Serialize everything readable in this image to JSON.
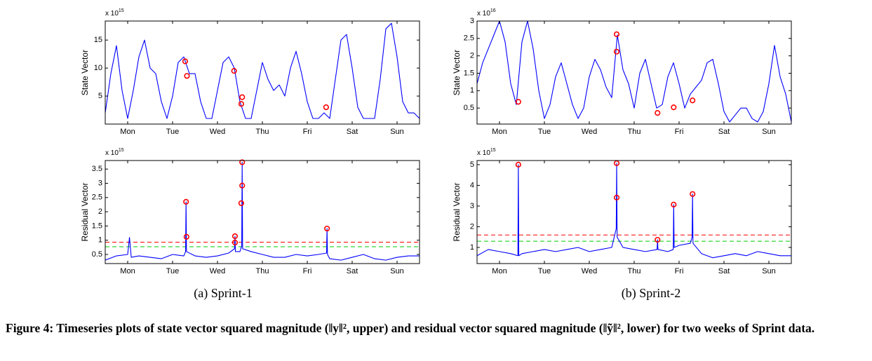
{
  "figure": {
    "subcaptions": [
      "(a) Sprint-1",
      "(b) Sprint-2"
    ],
    "caption": "Figure 4: Timeseries plots of state vector squared magnitude (‖y‖², upper) and residual vector squared magnitude (‖ỹ‖², lower) for two weeks of Sprint data."
  },
  "chart_data": [
    {
      "type": "line",
      "ylabel": "State Vector",
      "multiplier": {
        "base": "x 10",
        "exponent": "15"
      },
      "xlim": [
        0,
        7
      ],
      "xticks": [
        {
          "value": 0.5,
          "label": "Mon"
        },
        {
          "value": 1.5,
          "label": "Tue"
        },
        {
          "value": 2.5,
          "label": "Wed"
        },
        {
          "value": 3.5,
          "label": "Thu"
        },
        {
          "value": 4.5,
          "label": "Fri"
        },
        {
          "value": 5.5,
          "label": "Sat"
        },
        {
          "value": 6.5,
          "label": "Sun"
        }
      ],
      "ylim": [
        0,
        18.4
      ],
      "yticks": [
        5,
        10,
        15
      ],
      "series": [
        {
          "type": "line",
          "color": "#0000ff",
          "x": [
            0,
            0.125,
            0.25,
            0.375,
            0.5,
            0.625,
            0.75,
            0.875,
            1,
            1.125,
            1.25,
            1.375,
            1.5,
            1.625,
            1.75,
            1.875,
            2,
            2.125,
            2.25,
            2.375,
            2.5,
            2.625,
            2.75,
            2.875,
            3,
            3.125,
            3.25,
            3.375,
            3.5,
            3.625,
            3.75,
            3.875,
            4,
            4.125,
            4.25,
            4.375,
            4.5,
            4.625,
            4.75,
            4.875,
            5,
            5.125,
            5.25,
            5.375,
            5.5,
            5.625,
            5.75,
            5.875,
            6,
            6.125,
            6.25,
            6.375,
            6.5,
            6.625,
            6.75,
            6.875,
            7
          ],
          "values": [
            2,
            9,
            14,
            6,
            1,
            6,
            12,
            15,
            10,
            9,
            4,
            1,
            5,
            11,
            12,
            9,
            9,
            4,
            1,
            1,
            6,
            11,
            12,
            10,
            4,
            1,
            1,
            6,
            11,
            8,
            6,
            7,
            5,
            10,
            13,
            9,
            4,
            1,
            1,
            2,
            1,
            8,
            15,
            16,
            10,
            3,
            1,
            1,
            1,
            8,
            17,
            18,
            12,
            4,
            2,
            2,
            1
          ]
        },
        {
          "type": "scatter",
          "color": "#ff0000",
          "x": [
            1.78,
            1.82,
            2.87,
            3.05,
            3.03,
            4.92
          ],
          "values": [
            11.2,
            8.6,
            9.5,
            4.8,
            3.6,
            3.0
          ]
        }
      ]
    },
    {
      "type": "line",
      "ylabel": "State Vector",
      "multiplier": {
        "base": "x 10",
        "exponent": "16"
      },
      "xlim": [
        0,
        7
      ],
      "xticks": [
        {
          "value": 0.5,
          "label": "Mon"
        },
        {
          "value": 1.5,
          "label": "Tue"
        },
        {
          "value": 2.5,
          "label": "Wed"
        },
        {
          "value": 3.5,
          "label": "Thu"
        },
        {
          "value": 4.5,
          "label": "Fri"
        },
        {
          "value": 5.5,
          "label": "Sat"
        },
        {
          "value": 6.5,
          "label": "Sun"
        }
      ],
      "ylim": [
        0.04,
        3
      ],
      "yticks": [
        0.5,
        1,
        1.5,
        2,
        2.5,
        3
      ],
      "series": [
        {
          "type": "line",
          "color": "#0000ff",
          "x": [
            0,
            0.125,
            0.25,
            0.375,
            0.5,
            0.625,
            0.75,
            0.875,
            1,
            1.125,
            1.25,
            1.375,
            1.5,
            1.625,
            1.75,
            1.875,
            2,
            2.125,
            2.25,
            2.375,
            2.5,
            2.625,
            2.75,
            2.875,
            3,
            3.125,
            3.25,
            3.375,
            3.5,
            3.625,
            3.75,
            3.875,
            4,
            4.125,
            4.25,
            4.375,
            4.5,
            4.625,
            4.75,
            4.875,
            5,
            5.125,
            5.25,
            5.375,
            5.5,
            5.625,
            5.75,
            5.875,
            6,
            6.125,
            6.25,
            6.375,
            6.5,
            6.625,
            6.75,
            6.875,
            7
          ],
          "values": [
            1.2,
            1.8,
            2.2,
            2.6,
            3.0,
            2.4,
            1.2,
            0.6,
            2.4,
            3.0,
            2.2,
            1.0,
            0.2,
            0.6,
            1.4,
            1.8,
            1.2,
            0.6,
            0.2,
            0.5,
            1.4,
            1.9,
            1.6,
            1.1,
            0.8,
            2.6,
            1.6,
            1.2,
            0.5,
            1.5,
            1.9,
            1.2,
            0.5,
            0.6,
            1.4,
            1.8,
            1.2,
            0.5,
            0.9,
            1.1,
            1.3,
            1.8,
            1.9,
            1.2,
            0.4,
            0.1,
            0.3,
            0.5,
            0.5,
            0.2,
            0.1,
            0.4,
            1.2,
            2.3,
            1.4,
            0.9,
            0.1
          ]
        },
        {
          "type": "scatter",
          "color": "#ff0000",
          "x": [
            0.92,
            3.11,
            3.11,
            4.02,
            4.38,
            4.8
          ],
          "values": [
            0.68,
            2.62,
            2.12,
            0.36,
            0.52,
            0.72
          ]
        }
      ]
    },
    {
      "type": "line",
      "ylabel": "Residual Vector",
      "multiplier": {
        "base": "x 10",
        "exponent": "15"
      },
      "xlim": [
        0,
        7
      ],
      "xticks": [
        {
          "value": 0.5,
          "label": "Mon"
        },
        {
          "value": 1.5,
          "label": "Tue"
        },
        {
          "value": 2.5,
          "label": "Wed"
        },
        {
          "value": 3.5,
          "label": "Thu"
        },
        {
          "value": 4.5,
          "label": "Fri"
        },
        {
          "value": 5.5,
          "label": "Sat"
        },
        {
          "value": 6.5,
          "label": "Sun"
        }
      ],
      "ylim": [
        0.18,
        3.8
      ],
      "yticks": [
        0.5,
        1,
        1.5,
        2,
        2.5,
        3,
        3.5
      ],
      "hlines": [
        {
          "value": 0.93,
          "color": "#ff0000"
        },
        {
          "value": 0.77,
          "color": "#00cc00"
        }
      ],
      "series": [
        {
          "type": "line",
          "color": "#0000ff",
          "x": [
            0,
            0.25,
            0.5,
            0.54,
            0.58,
            0.75,
            1,
            1.25,
            1.5,
            1.75,
            1.79,
            1.8,
            1.81,
            2,
            2.25,
            2.5,
            2.75,
            2.88,
            2.89,
            2.9,
            3,
            3.04,
            3.05,
            3.06,
            3.25,
            3.5,
            3.75,
            4,
            4.25,
            4.5,
            4.75,
            4.93,
            4.94,
            4.95,
            5,
            5.25,
            5.5,
            5.75,
            6,
            6.25,
            6.5,
            6.75,
            7
          ],
          "values": [
            0.3,
            0.45,
            0.5,
            1.1,
            0.4,
            0.45,
            0.4,
            0.35,
            0.5,
            0.45,
            0.6,
            2.35,
            0.6,
            0.45,
            0.4,
            0.45,
            0.55,
            0.7,
            1.14,
            0.6,
            0.6,
            0.8,
            3.74,
            0.7,
            0.6,
            0.5,
            0.4,
            0.4,
            0.5,
            0.45,
            0.5,
            0.55,
            1.41,
            0.5,
            0.35,
            0.3,
            0.4,
            0.5,
            0.35,
            0.3,
            0.4,
            0.45,
            0.45
          ]
        },
        {
          "type": "scatter",
          "color": "#ff0000",
          "x": [
            1.8,
            1.81,
            2.89,
            2.89,
            3.05,
            3.05,
            3.03,
            4.94
          ],
          "values": [
            2.35,
            1.12,
            1.14,
            0.92,
            3.74,
            2.92,
            2.3,
            1.41
          ]
        }
      ]
    },
    {
      "type": "line",
      "ylabel": "Residual Vector",
      "multiplier": {
        "base": "x 10",
        "exponent": "15"
      },
      "xlim": [
        0,
        7
      ],
      "xticks": [
        {
          "value": 0.5,
          "label": "Mon"
        },
        {
          "value": 1.5,
          "label": "Tue"
        },
        {
          "value": 2.5,
          "label": "Wed"
        },
        {
          "value": 3.5,
          "label": "Thu"
        },
        {
          "value": 4.5,
          "label": "Fri"
        },
        {
          "value": 5.5,
          "label": "Sat"
        },
        {
          "value": 6.5,
          "label": "Sun"
        }
      ],
      "ylim": [
        0.22,
        5.2
      ],
      "yticks": [
        1,
        2,
        3,
        4,
        5
      ],
      "hlines": [
        {
          "value": 1.6,
          "color": "#ff0000"
        },
        {
          "value": 1.3,
          "color": "#00cc00"
        }
      ],
      "series": [
        {
          "type": "line",
          "color": "#0000ff",
          "x": [
            0,
            0.25,
            0.5,
            0.75,
            0.91,
            0.92,
            0.93,
            1,
            1.25,
            1.5,
            1.75,
            2,
            2.25,
            2.5,
            2.75,
            3,
            3.1,
            3.11,
            3.12,
            3.25,
            3.5,
            3.75,
            4.01,
            4.02,
            4.03,
            4.25,
            4.37,
            4.38,
            4.39,
            4.5,
            4.75,
            4.79,
            4.8,
            4.81,
            5,
            5.25,
            5.5,
            5.75,
            6,
            6.25,
            6.5,
            6.75,
            7
          ],
          "values": [
            0.6,
            0.9,
            0.8,
            0.7,
            0.6,
            5.0,
            0.6,
            0.7,
            0.8,
            0.9,
            0.8,
            0.9,
            1.0,
            0.8,
            0.9,
            1.0,
            1.9,
            5.07,
            1.5,
            1.0,
            0.9,
            0.8,
            0.9,
            1.37,
            0.9,
            0.8,
            0.9,
            3.07,
            1.0,
            1.1,
            1.2,
            1.5,
            3.58,
            1.2,
            0.7,
            0.5,
            0.6,
            0.7,
            0.6,
            0.8,
            0.7,
            0.6,
            0.6
          ]
        },
        {
          "type": "scatter",
          "color": "#ff0000",
          "x": [
            0.92,
            3.11,
            3.11,
            4.02,
            4.38,
            4.8
          ],
          "values": [
            5.0,
            5.07,
            3.41,
            1.37,
            3.07,
            3.58
          ]
        }
      ]
    }
  ]
}
